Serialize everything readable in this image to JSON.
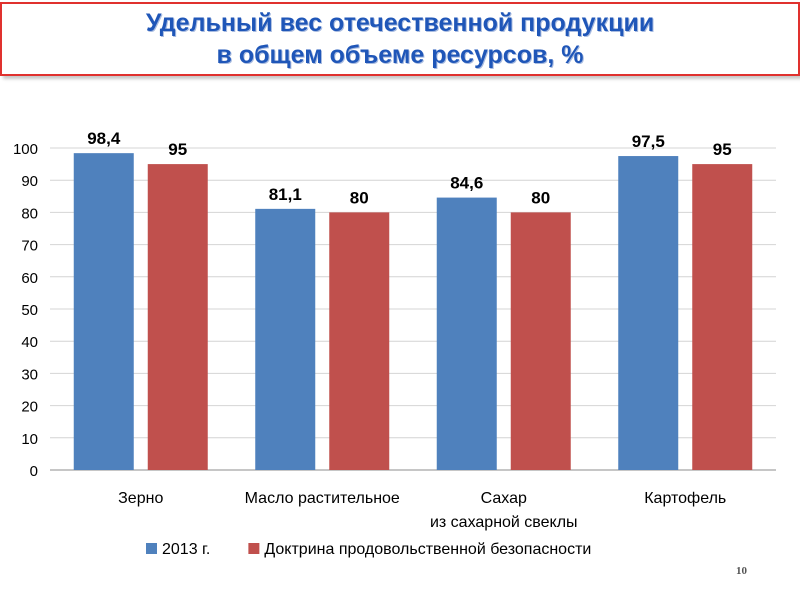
{
  "title": {
    "line1": "Удельный вес отечественной продукции",
    "line2": "в общем объеме ресурсов, %"
  },
  "page_number": "10",
  "colors": {
    "series_2013": "#4f81bd",
    "series_doctrine": "#c0504d",
    "title": "#1f56b8",
    "title_border": "#e0312e"
  },
  "chart_data": {
    "type": "bar",
    "categories": [
      [
        "Зерно"
      ],
      [
        "Масло растительное"
      ],
      [
        "Сахар",
        "из сахарной свеклы"
      ],
      [
        "Картофель"
      ]
    ],
    "series": [
      {
        "name": "2013 г.",
        "values": [
          98.4,
          81.1,
          84.6,
          97.5
        ],
        "labels": [
          "98,4",
          "81,1",
          "84,6",
          "97,5"
        ],
        "color": "#4f81bd"
      },
      {
        "name": "Доктрина продовольственной безопасности",
        "values": [
          95,
          80,
          80,
          95
        ],
        "labels": [
          "95",
          "80",
          "80",
          "95"
        ],
        "color": "#c0504d"
      }
    ],
    "ylim": [
      0,
      100
    ],
    "yticks": [
      "0",
      "10",
      "20",
      "30",
      "40",
      "50",
      "60",
      "70",
      "80",
      "90",
      "100"
    ],
    "grid": true,
    "legend": "bottom"
  }
}
